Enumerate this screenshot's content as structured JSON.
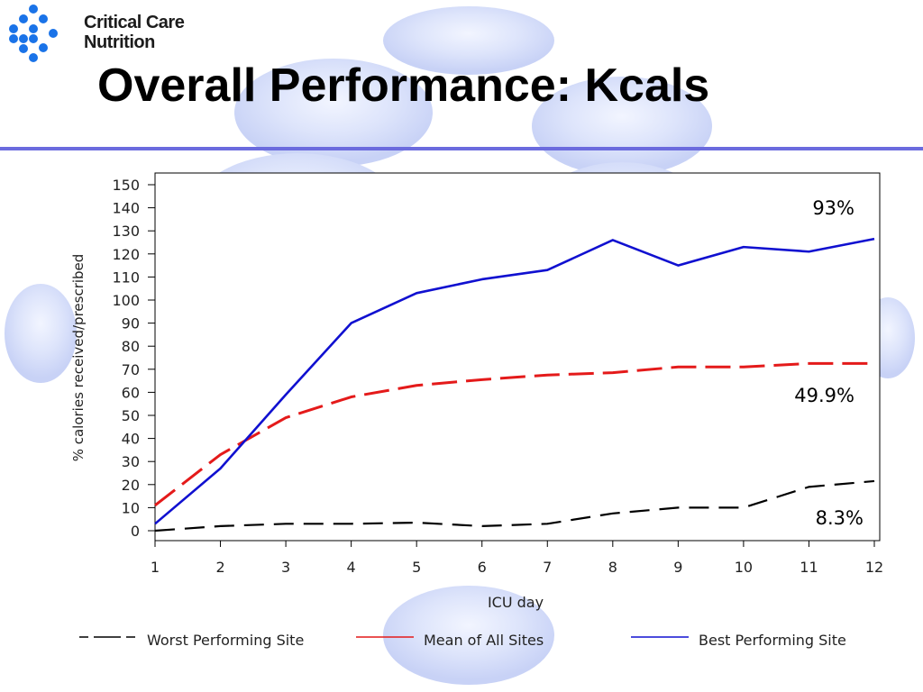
{
  "header": {
    "brand_line1": "Critical Care",
    "brand_line2": "Nutrition",
    "title": "Overall Performance: Kcals"
  },
  "icons": {
    "logo": "critical-care-nutrition-logo-icon"
  },
  "colors": {
    "title_rule": "#6b6bde",
    "worst": "#000000",
    "mean": "#e41a1a",
    "best": "#1010d0",
    "logo": "#1a73e8"
  },
  "chart_data": {
    "type": "line",
    "xlabel": "ICU day",
    "ylabel": "% calories received/prescribed",
    "x": [
      1,
      2,
      3,
      4,
      5,
      6,
      7,
      8,
      9,
      10,
      11,
      12
    ],
    "xlim": [
      1,
      12
    ],
    "ylim": [
      0,
      150
    ],
    "yticks": [
      0,
      10,
      20,
      30,
      40,
      50,
      60,
      70,
      80,
      90,
      100,
      110,
      120,
      130,
      140,
      150
    ],
    "grid": false,
    "legend_position": "bottom",
    "series": [
      {
        "name": "Worst Performing Site",
        "style": "dashed",
        "color": "#000000",
        "values": [
          0,
          2,
          3,
          3,
          3.5,
          2,
          3,
          7.5,
          10,
          10,
          19,
          21.5
        ]
      },
      {
        "name": "Mean of All Sites",
        "style": "dashed",
        "color": "#e41a1a",
        "values": [
          11,
          33,
          49,
          58,
          63,
          65.5,
          67.5,
          68.5,
          71,
          71,
          72.5,
          72.5
        ]
      },
      {
        "name": "Best Performing Site",
        "style": "solid",
        "color": "#1010d0",
        "values": [
          3,
          27,
          59,
          90,
          103,
          109,
          113,
          126,
          115,
          123,
          121,
          126.5
        ]
      }
    ],
    "annotations": [
      {
        "text": "93%",
        "target": "Best Performing Site"
      },
      {
        "text": "49.9%",
        "target": "Mean of All Sites"
      },
      {
        "text": "8.3%",
        "target": "Worst Performing Site"
      }
    ]
  }
}
